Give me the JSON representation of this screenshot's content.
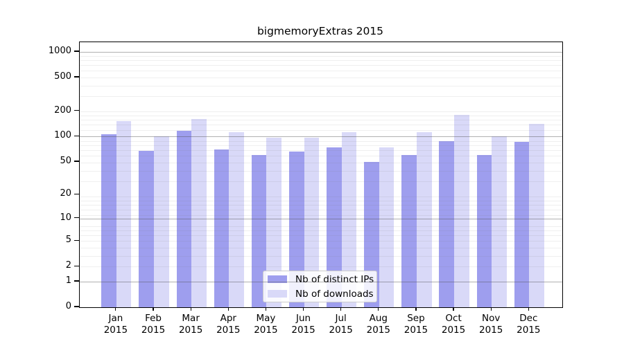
{
  "chart_data": {
    "type": "bar",
    "title": "bigmemoryExtras 2015",
    "categories": [
      "Jan",
      "Feb",
      "Mar",
      "Apr",
      "May",
      "Jun",
      "Jul",
      "Aug",
      "Sep",
      "Oct",
      "Nov",
      "Dec"
    ],
    "year_label": "2015",
    "series": [
      {
        "name": "Nb of distinct IPs",
        "color": "#9e9eee",
        "values": [
          107,
          68,
          118,
          70,
          61,
          67,
          75,
          50,
          61,
          89,
          60,
          87
        ]
      },
      {
        "name": "Nb of downloads",
        "color": "#d9d9f8",
        "values": [
          152,
          100,
          162,
          112,
          98,
          97,
          112,
          75,
          113,
          180,
          100,
          142
        ]
      }
    ],
    "y_ticks": [
      0,
      1,
      2,
      5,
      10,
      20,
      50,
      100,
      200,
      500,
      1000
    ],
    "y_major_gridlines": [
      1,
      10,
      100,
      1000
    ],
    "y_scale": "log10(value+1)",
    "ylim": [
      0,
      1300
    ],
    "xlabel": "",
    "ylabel": "",
    "grid": "horizontal, major and minor, drawn over bars",
    "legend_position": "inside bottom-center",
    "colors": {
      "bar_distinct_ips": "#9e9eee",
      "bar_downloads": "#d9d9f8",
      "major_grid": "#8c8c8c",
      "minor_grid": "#e4e4e8",
      "frame": "#000000",
      "background": "#ffffff"
    }
  }
}
